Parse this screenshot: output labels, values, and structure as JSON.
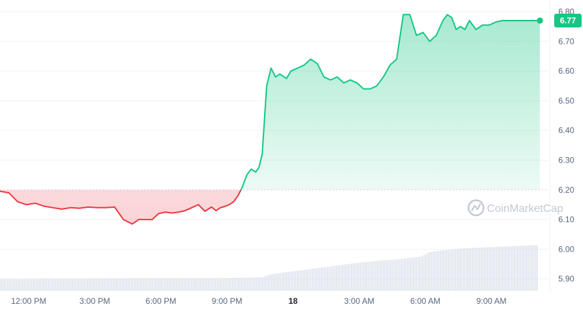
{
  "chart_data": {
    "type": "area",
    "reference_price": 6.2,
    "current_price": 6.77,
    "current_price_label": "6.77",
    "watermark": "CoinMarketCap",
    "ylim": [
      5.86,
      6.83
    ],
    "ytick_labels": [
      {
        "value": 6.8,
        "label": "6.80"
      },
      {
        "value": 6.7,
        "label": "6.70"
      },
      {
        "value": 6.6,
        "label": "6.60"
      },
      {
        "value": 6.5,
        "label": "6.50"
      },
      {
        "value": 6.4,
        "label": "6.40"
      },
      {
        "value": 6.3,
        "label": "6.30"
      },
      {
        "value": 6.2,
        "label": "6.20"
      },
      {
        "value": 6.1,
        "label": "6.10"
      },
      {
        "value": 6.0,
        "label": "6.00"
      },
      {
        "value": 5.9,
        "label": "5.90"
      }
    ],
    "xlim": [
      10.7,
      35.6
    ],
    "xtick_labels": [
      {
        "hour": 12,
        "label": "12:00 PM",
        "bold": false
      },
      {
        "hour": 15,
        "label": "3:00 PM",
        "bold": false
      },
      {
        "hour": 18,
        "label": "6:00 PM",
        "bold": false
      },
      {
        "hour": 21,
        "label": "9:00 PM",
        "bold": false
      },
      {
        "hour": 24,
        "label": "18",
        "bold": true
      },
      {
        "hour": 27,
        "label": "3:00 AM",
        "bold": false
      },
      {
        "hour": 30,
        "label": "6:00 AM",
        "bold": false
      },
      {
        "hour": 33,
        "label": "9:00 AM",
        "bold": false
      }
    ],
    "colors": {
      "up": "#16c784",
      "down": "#ea3943",
      "grid": "#eff2f5",
      "reference_line": "#cfd6e4",
      "volume": "#cfd6e4",
      "badge_text": "#ffffff"
    },
    "price_series": {
      "x_hours": [
        10.7,
        11.1,
        11.5,
        11.9,
        12.3,
        12.7,
        13.1,
        13.5,
        13.9,
        14.3,
        14.7,
        15.1,
        15.5,
        15.9,
        16.3,
        16.7,
        17.0,
        17.3,
        17.6,
        17.9,
        18.2,
        18.5,
        18.8,
        19.1,
        19.4,
        19.7,
        20.0,
        20.3,
        20.5,
        20.7,
        20.9,
        21.1,
        21.3,
        21.5,
        21.7,
        21.9,
        22.1,
        22.3,
        22.45,
        22.6,
        22.8,
        23.0,
        23.2,
        23.4,
        23.7,
        23.9,
        24.2,
        24.5,
        24.8,
        25.1,
        25.4,
        25.7,
        26.0,
        26.3,
        26.6,
        26.9,
        27.2,
        27.5,
        27.8,
        28.1,
        28.4,
        28.7,
        29.0,
        29.3,
        29.6,
        29.9,
        30.2,
        30.5,
        30.8,
        31.0,
        31.2,
        31.4,
        31.6,
        31.8,
        32.0,
        32.3,
        32.6,
        32.9,
        33.2,
        33.5,
        33.8,
        34.1,
        34.4,
        34.7,
        35.0,
        35.2
      ],
      "prices": [
        6.195,
        6.19,
        6.16,
        6.15,
        6.155,
        6.145,
        6.14,
        6.135,
        6.14,
        6.138,
        6.142,
        6.14,
        6.14,
        6.142,
        6.1,
        6.085,
        6.1,
        6.1,
        6.1,
        6.12,
        6.125,
        6.122,
        6.125,
        6.13,
        6.14,
        6.15,
        6.128,
        6.142,
        6.13,
        6.14,
        6.144,
        6.15,
        6.16,
        6.18,
        6.21,
        6.25,
        6.27,
        6.26,
        6.275,
        6.32,
        6.55,
        6.61,
        6.58,
        6.59,
        6.575,
        6.6,
        6.61,
        6.62,
        6.64,
        6.625,
        6.58,
        6.57,
        6.58,
        6.56,
        6.57,
        6.56,
        6.54,
        6.54,
        6.55,
        6.58,
        6.62,
        6.64,
        6.79,
        6.79,
        6.72,
        6.73,
        6.7,
        6.72,
        6.77,
        6.79,
        6.78,
        6.74,
        6.75,
        6.74,
        6.77,
        6.74,
        6.755,
        6.755,
        6.765,
        6.77,
        6.77,
        6.77,
        6.77,
        6.77,
        6.77,
        6.77
      ]
    },
    "volume_series": {
      "x_hours": [
        10.7,
        14.0,
        17.0,
        20.0,
        22.0,
        22.6,
        23.0,
        24.0,
        25.0,
        26.0,
        27.0,
        28.0,
        29.0,
        29.8,
        30.2,
        31.0,
        31.5,
        32.0,
        33.0,
        34.0,
        35.0,
        35.6
      ],
      "levels": [
        0.12,
        0.125,
        0.13,
        0.13,
        0.135,
        0.14,
        0.17,
        0.2,
        0.23,
        0.26,
        0.29,
        0.31,
        0.33,
        0.35,
        0.4,
        0.42,
        0.43,
        0.44,
        0.45,
        0.46,
        0.47,
        0.47
      ]
    }
  }
}
